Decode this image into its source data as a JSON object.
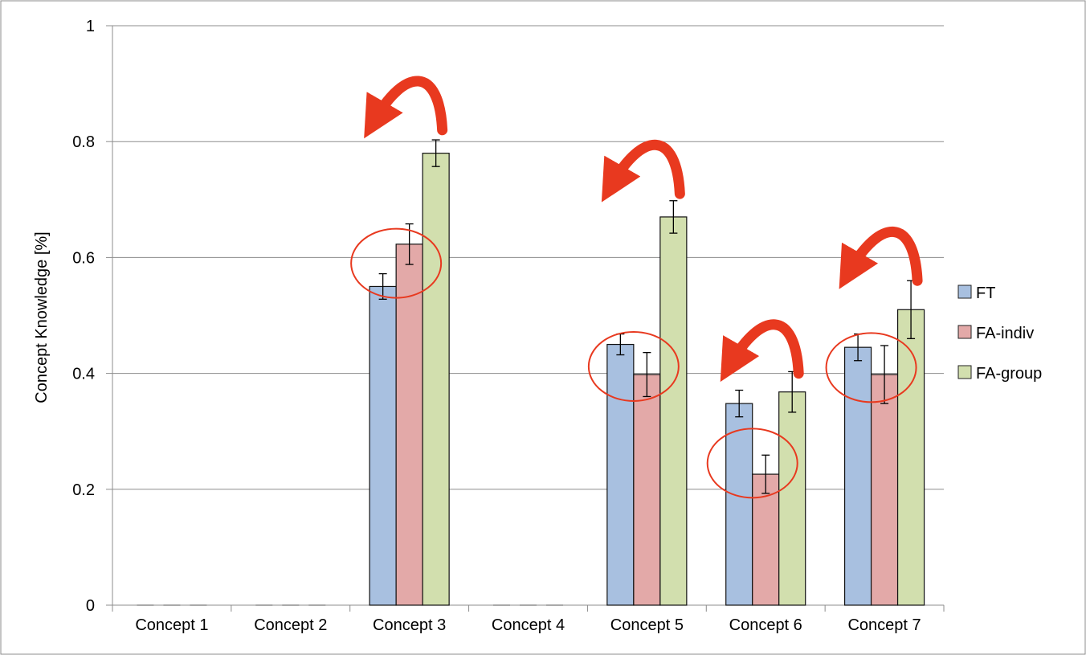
{
  "chart_data": {
    "type": "bar",
    "title": "",
    "xlabel": "",
    "ylabel": "Concept Knowledge [%]",
    "ylim": [
      0,
      1
    ],
    "yticks": [
      0,
      0.2,
      0.4,
      0.6,
      0.8,
      1
    ],
    "ytick_labels": [
      "0",
      "0.2",
      "0.4",
      "0.6",
      "0.8",
      "1"
    ],
    "grid": true,
    "legend_position": "right",
    "categories": [
      "Concept 1",
      "Concept 2",
      "Concept 3",
      "Concept 4",
      "Concept 5",
      "Concept 6",
      "Concept 7"
    ],
    "series": [
      {
        "name": "FT",
        "color": "#a8c0e0",
        "values": [
          0,
          0,
          0.55,
          0,
          0.45,
          0.348,
          0.445
        ],
        "errors": [
          0,
          0,
          0.022,
          0,
          0.018,
          0.023,
          0.023
        ]
      },
      {
        "name": "FA-indiv",
        "color": "#e3a9a8",
        "values": [
          0,
          0,
          0.623,
          0,
          0.398,
          0.226,
          0.398
        ],
        "errors": [
          0,
          0,
          0.035,
          0,
          0.038,
          0.033,
          0.05
        ]
      },
      {
        "name": "FA-group",
        "color": "#d2dfae",
        "values": [
          0,
          0,
          0.78,
          0,
          0.67,
          0.368,
          0.51
        ],
        "errors": [
          0,
          0,
          0.023,
          0,
          0.028,
          0.035,
          0.05
        ]
      }
    ],
    "annotations": {
      "circle_color": "#e8391f",
      "arrow_color": "#e8391f",
      "circles": [
        {
          "category": "Concept 3",
          "value": 0.59
        },
        {
          "category": "Concept 5",
          "value": 0.412
        },
        {
          "category": "Concept 6",
          "value": 0.245
        },
        {
          "category": "Concept 7",
          "value": 0.41
        }
      ],
      "arrows": [
        {
          "category": "Concept 3",
          "value": 0.82
        },
        {
          "category": "Concept 5",
          "value": 0.71
        },
        {
          "category": "Concept 6",
          "value": 0.4
        },
        {
          "category": "Concept 7",
          "value": 0.56
        }
      ]
    }
  }
}
